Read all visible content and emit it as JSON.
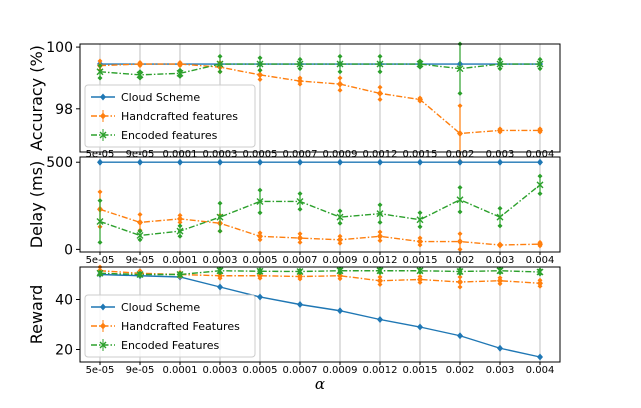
{
  "chart_data": [
    {
      "type": "line",
      "ylabel": "Accuracy (%)",
      "xlabel": "",
      "categories": [
        "5e-05",
        "9e-05",
        "0.0001",
        "0.0003",
        "0.0005",
        "0.0007",
        "0.0009",
        "0.0012",
        "0.0015",
        "0.002",
        "0.003",
        "0.004"
      ],
      "ylim": [
        96.6,
        100.1
      ],
      "yticks": [
        98,
        100
      ],
      "grid": "x",
      "legend": "bottom-left",
      "series": [
        {
          "name": "Cloud Scheme",
          "color": "#1f77b4",
          "marker": "diamond",
          "linestyle": "solid",
          "values": [
            99.45,
            99.45,
            99.45,
            99.45,
            99.45,
            99.45,
            99.45,
            99.45,
            99.45,
            99.45,
            99.45,
            99.45
          ],
          "err": [
            0,
            0,
            0,
            0,
            0,
            0,
            0,
            0,
            0,
            0,
            0,
            0
          ]
        },
        {
          "name": "Handcrafted features",
          "color": "#ff7f0e",
          "marker": "diamond",
          "linestyle": "dashdot",
          "values": [
            99.4,
            99.45,
            99.45,
            99.35,
            99.1,
            98.9,
            98.8,
            98.5,
            98.3,
            97.2,
            97.3,
            97.3
          ],
          "err": [
            0.15,
            0.05,
            0.05,
            0.15,
            0.15,
            0.1,
            0.2,
            0.2,
            0.05,
            0.9,
            0.05,
            0.05
          ]
        },
        {
          "name": "Encoded features",
          "color": "#2ca02c",
          "marker": "x",
          "linestyle": "dashdot",
          "values": [
            99.2,
            99.1,
            99.15,
            99.45,
            99.45,
            99.45,
            99.45,
            99.45,
            99.45,
            99.3,
            99.45,
            99.45
          ],
          "err": [
            0.2,
            0.1,
            0.1,
            0.25,
            0.2,
            0.15,
            0.25,
            0.25,
            0.1,
            0.8,
            0.15,
            0.15
          ]
        }
      ]
    },
    {
      "type": "line",
      "ylabel": "Delay (ms)",
      "xlabel": "",
      "categories": [
        "5e-05",
        "9e-05",
        "0.0001",
        "0.0003",
        "0.0005",
        "0.0007",
        "0.0009",
        "0.0012",
        "0.0015",
        "0.002",
        "0.003",
        "0.004"
      ],
      "ylim": [
        -15,
        530
      ],
      "yticks": [
        0,
        500
      ],
      "grid": "x",
      "legend": "none",
      "series": [
        {
          "name": "Cloud Scheme",
          "color": "#1f77b4",
          "marker": "diamond",
          "linestyle": "solid",
          "values": [
            500,
            500,
            500,
            500,
            500,
            500,
            500,
            500,
            500,
            500,
            500,
            500
          ],
          "err": [
            0,
            0,
            0,
            0,
            0,
            0,
            0,
            0,
            0,
            0,
            0,
            0
          ]
        },
        {
          "name": "Handcrafted features",
          "color": "#ff7f0e",
          "marker": "diamond",
          "linestyle": "dashdot",
          "values": [
            230,
            155,
            175,
            150,
            75,
            65,
            55,
            75,
            45,
            45,
            25,
            30
          ],
          "err": [
            100,
            45,
            20,
            45,
            20,
            25,
            20,
            25,
            20,
            45,
            5,
            10
          ]
        },
        {
          "name": "Encoded features",
          "color": "#2ca02c",
          "marker": "x",
          "linestyle": "dashdot",
          "values": [
            160,
            80,
            105,
            185,
            275,
            275,
            185,
            205,
            170,
            285,
            185,
            370
          ],
          "err": [
            120,
            25,
            30,
            80,
            65,
            45,
            35,
            50,
            40,
            70,
            50,
            50
          ]
        }
      ]
    },
    {
      "type": "line",
      "ylabel": "Reward",
      "xlabel": "α",
      "categories": [
        "5e-05",
        "9e-05",
        "0.0001",
        "0.0003",
        "0.0005",
        "0.0007",
        "0.0009",
        "0.0012",
        "0.0015",
        "0.002",
        "0.003",
        "0.004"
      ],
      "ylim": [
        15,
        53
      ],
      "yticks": [
        20,
        40
      ],
      "grid": "x",
      "legend": "bottom-left",
      "series": [
        {
          "name": "Cloud Scheme",
          "color": "#1f77b4",
          "marker": "diamond",
          "linestyle": "solid",
          "values": [
            50,
            49.5,
            49,
            45,
            41,
            38,
            35.5,
            32,
            29,
            25.5,
            20.5,
            17
          ],
          "err": [
            0,
            0,
            0,
            0,
            0,
            0,
            0,
            0,
            0,
            0,
            0,
            0
          ]
        },
        {
          "name": "Handcrafted Features",
          "color": "#ff7f0e",
          "marker": "diamond",
          "linestyle": "dashdot",
          "values": [
            51.5,
            50.5,
            50,
            49.5,
            49.5,
            49.2,
            49.5,
            47.5,
            48,
            47,
            47.5,
            46.5
          ],
          "err": [
            1.5,
            1,
            0.8,
            1,
            1,
            1,
            1.2,
            1.5,
            1.2,
            2,
            1.2,
            1.2
          ]
        },
        {
          "name": "Encoded Features",
          "color": "#2ca02c",
          "marker": "x",
          "linestyle": "dashdot",
          "values": [
            50.5,
            50,
            50,
            51.5,
            51.3,
            51.2,
            51.5,
            51.5,
            51.5,
            51.2,
            51.5,
            51
          ],
          "err": [
            0.5,
            0.5,
            0.5,
            0.8,
            0.6,
            0.5,
            0.8,
            0.8,
            0.6,
            0.8,
            0.8,
            0.8
          ]
        }
      ]
    }
  ]
}
